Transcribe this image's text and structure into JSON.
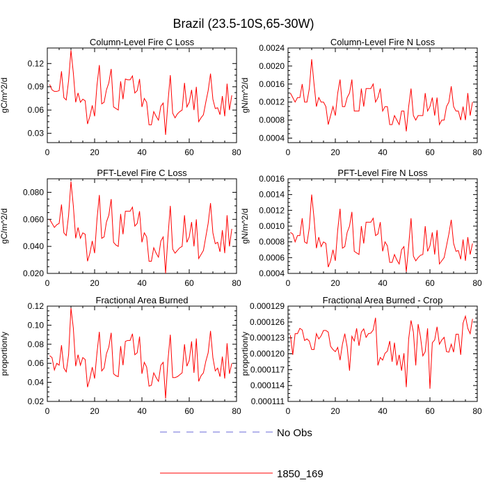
{
  "figure_title": "Brazil (23.5-10S,65-30W)",
  "colors": {
    "model": "#ff0000",
    "obs": "#6a6ad8",
    "axis": "#000000"
  },
  "legend": [
    {
      "label": "No Obs",
      "style": "dashed",
      "color": "#6a6ad8"
    },
    {
      "label": "1850_169",
      "style": "solid",
      "color": "#ff0000"
    }
  ],
  "chart_data": [
    {
      "type": "line",
      "title": "Column-Level Fire C Loss",
      "xlabel": "",
      "ylabel": "gC/m^2/d",
      "xlim": [
        0,
        80
      ],
      "ylim": [
        0.018,
        0.14
      ],
      "xticks": [
        0,
        20,
        40,
        60,
        80
      ],
      "xtick_labels": [
        "0",
        "20",
        "40",
        "60",
        "80"
      ],
      "yticks": [
        0.03,
        0.06,
        0.09,
        0.12
      ],
      "ytick_labels": [
        "0.03",
        "0.06",
        "0.09",
        "0.12"
      ],
      "x_start": 1,
      "series": [
        {
          "name": "1850_169",
          "values": [
            0.093,
            0.086,
            0.084,
            0.084,
            0.085,
            0.11,
            0.076,
            0.073,
            0.098,
            0.137,
            0.108,
            0.07,
            0.082,
            0.07,
            0.074,
            0.072,
            0.042,
            0.052,
            0.066,
            0.052,
            0.092,
            0.118,
            0.068,
            0.07,
            0.086,
            0.095,
            0.113,
            0.064,
            0.062,
            0.06,
            0.097,
            0.074,
            0.1,
            0.099,
            0.099,
            0.104,
            0.082,
            0.085,
            0.1,
            0.064,
            0.075,
            0.07,
            0.041,
            0.041,
            0.058,
            0.052,
            0.047,
            0.065,
            0.069,
            0.028,
            0.07,
            0.105,
            0.056,
            0.05,
            0.055,
            0.058,
            0.06,
            0.095,
            0.064,
            0.07,
            0.086,
            0.06,
            0.09,
            0.045,
            0.05,
            0.054,
            0.07,
            0.085,
            0.107,
            0.074,
            0.062,
            0.063,
            0.054,
            0.078,
            0.052,
            0.094,
            0.06,
            0.079
          ]
        }
      ]
    },
    {
      "type": "line",
      "title": "Column-Level Fire N Loss",
      "xlabel": "",
      "ylabel": "gN/m^2/d",
      "xlim": [
        0,
        80
      ],
      "ylim": [
        0.0003,
        0.0024
      ],
      "xticks": [
        0,
        20,
        40,
        60,
        80
      ],
      "xtick_labels": [
        "0",
        "20",
        "40",
        "60",
        "80"
      ],
      "yticks": [
        0.0004,
        0.0008,
        0.0012,
        0.0016,
        0.002,
        0.0024
      ],
      "ytick_labels": [
        "0.0004",
        "0.0008",
        "0.0012",
        "0.0016",
        "0.0020",
        "0.0024"
      ],
      "x_start": 1,
      "series": [
        {
          "name": "1850_169",
          "values": [
            0.0014,
            0.0013,
            0.0012,
            0.0013,
            0.0013,
            0.0016,
            0.0012,
            0.0012,
            0.0015,
            0.00215,
            0.0016,
            0.0011,
            0.0013,
            0.0012,
            0.0012,
            0.0011,
            0.0007,
            0.0009,
            0.0011,
            0.0009,
            0.0014,
            0.0017,
            0.0011,
            0.0011,
            0.0013,
            0.0014,
            0.0017,
            0.001,
            0.001,
            0.001,
            0.0015,
            0.0011,
            0.0015,
            0.0015,
            0.0015,
            0.0016,
            0.0012,
            0.0013,
            0.0015,
            0.001,
            0.0011,
            0.0011,
            0.0007,
            0.0007,
            0.0009,
            0.0008,
            0.0007,
            0.001,
            0.001,
            0.00055,
            0.0011,
            0.0015,
            0.0009,
            0.0008,
            0.0009,
            0.0009,
            0.0009,
            0.0014,
            0.001,
            0.0011,
            0.0013,
            0.0009,
            0.0013,
            0.0007,
            0.0008,
            0.0008,
            0.0011,
            0.0012,
            0.00155,
            0.0011,
            0.001,
            0.001,
            0.0008,
            0.0011,
            0.0008,
            0.0014,
            0.0009,
            0.0012
          ]
        }
      ]
    },
    {
      "type": "line",
      "title": "PFT-Level Fire C Loss",
      "xlabel": "",
      "ylabel": "gC/m^2/d",
      "xlim": [
        0,
        80
      ],
      "ylim": [
        0.02,
        0.09
      ],
      "xticks": [
        0,
        20,
        40,
        60,
        80
      ],
      "xtick_labels": [
        "0",
        "20",
        "40",
        "60",
        "80"
      ],
      "yticks": [
        0.02,
        0.04,
        0.06,
        0.08
      ],
      "ytick_labels": [
        "0.020",
        "0.040",
        "0.060",
        "0.080"
      ],
      "x_start": 1,
      "series": [
        {
          "name": "1850_169",
          "values": [
            0.06,
            0.057,
            0.054,
            0.056,
            0.057,
            0.071,
            0.05,
            0.048,
            0.063,
            0.088,
            0.07,
            0.046,
            0.054,
            0.046,
            0.05,
            0.049,
            0.029,
            0.035,
            0.044,
            0.035,
            0.06,
            0.078,
            0.046,
            0.047,
            0.058,
            0.063,
            0.075,
            0.043,
            0.041,
            0.04,
            0.064,
            0.049,
            0.066,
            0.066,
            0.066,
            0.069,
            0.055,
            0.057,
            0.066,
            0.043,
            0.05,
            0.047,
            0.029,
            0.029,
            0.039,
            0.035,
            0.032,
            0.044,
            0.047,
            0.02,
            0.047,
            0.07,
            0.038,
            0.035,
            0.037,
            0.039,
            0.04,
            0.063,
            0.043,
            0.047,
            0.058,
            0.04,
            0.06,
            0.031,
            0.034,
            0.037,
            0.047,
            0.057,
            0.072,
            0.05,
            0.042,
            0.043,
            0.036,
            0.052,
            0.035,
            0.063,
            0.04,
            0.053
          ]
        }
      ]
    },
    {
      "type": "line",
      "title": "PFT-Level Fire N Loss",
      "xlabel": "",
      "ylabel": "gN/m^2/d",
      "xlim": [
        0,
        80
      ],
      "ylim": [
        0.0004,
        0.0016
      ],
      "xticks": [
        0,
        20,
        40,
        60,
        80
      ],
      "xtick_labels": [
        "0",
        "20",
        "40",
        "60",
        "80"
      ],
      "yticks": [
        0.0004,
        0.0006,
        0.0008,
        0.001,
        0.0012,
        0.0014,
        0.0016
      ],
      "ytick_labels": [
        "0.0004",
        "0.0006",
        "0.0008",
        "0.0010",
        "0.0012",
        "0.0014",
        "0.0016"
      ],
      "x_start": 1,
      "series": [
        {
          "name": "1850_169",
          "values": [
            0.00092,
            0.0009,
            0.0008,
            0.00088,
            0.00088,
            0.0011,
            0.0008,
            0.00078,
            0.00098,
            0.0014,
            0.0011,
            0.00072,
            0.00086,
            0.00074,
            0.0008,
            0.00078,
            0.00048,
            0.00056,
            0.0007,
            0.00056,
            0.00095,
            0.00122,
            0.00072,
            0.00074,
            0.00092,
            0.001,
            0.00118,
            0.00068,
            0.00066,
            0.00064,
            0.001,
            0.00078,
            0.00105,
            0.00105,
            0.00105,
            0.0011,
            0.00088,
            0.0009,
            0.00105,
            0.00068,
            0.0008,
            0.00075,
            0.00054,
            0.00054,
            0.00064,
            0.00057,
            0.00052,
            0.0007,
            0.00074,
            0.00042,
            0.00075,
            0.0011,
            0.00062,
            0.00056,
            0.0006,
            0.00063,
            0.00064,
            0.001,
            0.00068,
            0.00075,
            0.00092,
            0.00064,
            0.00095,
            0.00052,
            0.00056,
            0.0006,
            0.00075,
            0.0009,
            0.00108,
            0.00078,
            0.00068,
            0.00069,
            0.00058,
            0.00083,
            0.00056,
            0.00086,
            0.00064,
            0.00078
          ]
        }
      ]
    },
    {
      "type": "line",
      "title": "Fractional Area Burned",
      "xlabel": "",
      "ylabel": "proportion/y",
      "xlim": [
        0,
        80
      ],
      "ylim": [
        0.02,
        0.12
      ],
      "xticks": [
        0,
        20,
        40,
        60,
        80
      ],
      "xtick_labels": [
        "0",
        "20",
        "40",
        "60",
        "80"
      ],
      "yticks": [
        0.02,
        0.04,
        0.06,
        0.08,
        0.1,
        0.12
      ],
      "ytick_labels": [
        "0.02",
        "0.04",
        "0.06",
        "0.08",
        "0.10",
        "0.12"
      ],
      "x_start": 1,
      "series": [
        {
          "name": "1850_169",
          "values": [
            0.068,
            0.066,
            0.053,
            0.06,
            0.058,
            0.079,
            0.055,
            0.051,
            0.069,
            0.118,
            0.097,
            0.057,
            0.069,
            0.058,
            0.066,
            0.064,
            0.035,
            0.044,
            0.056,
            0.044,
            0.071,
            0.093,
            0.052,
            0.055,
            0.07,
            0.077,
            0.092,
            0.049,
            0.047,
            0.046,
            0.078,
            0.058,
            0.083,
            0.084,
            0.084,
            0.091,
            0.069,
            0.071,
            0.088,
            0.049,
            0.061,
            0.056,
            0.036,
            0.037,
            0.05,
            0.045,
            0.041,
            0.058,
            0.061,
            0.023,
            0.063,
            0.09,
            0.045,
            0.045,
            0.046,
            0.048,
            0.05,
            0.08,
            0.057,
            0.063,
            0.083,
            0.05,
            0.086,
            0.041,
            0.047,
            0.05,
            0.062,
            0.071,
            0.094,
            0.066,
            0.052,
            0.055,
            0.046,
            0.067,
            0.044,
            0.081,
            0.049,
            0.06
          ]
        }
      ]
    },
    {
      "type": "line",
      "title": "Fractional Area Burned - Crop",
      "xlabel": "",
      "ylabel": "proportion/y",
      "xlim": [
        0,
        80
      ],
      "ylim": [
        0.000111,
        0.000129
      ],
      "xticks": [
        0,
        20,
        40,
        60,
        80
      ],
      "xtick_labels": [
        "0",
        "20",
        "40",
        "60",
        "80"
      ],
      "yticks": [
        0.000111,
        0.000114,
        0.000117,
        0.00012,
        0.000123,
        0.000126,
        0.000129
      ],
      "ytick_labels": [
        "0.000111",
        "0.000114",
        "0.000117",
        "0.000120",
        "0.000123",
        "0.000126",
        "0.000129"
      ],
      "x_start": 1,
      "series": [
        {
          "name": "1850_169",
          "values": [
            0.0001235,
            0.0001198,
            0.0001238,
            0.0001238,
            0.0001248,
            0.0001245,
            0.0001225,
            0.0001228,
            0.0001224,
            0.0001208,
            0.0001208,
            0.0001238,
            0.0001228,
            0.0001234,
            0.0001244,
            0.0001244,
            0.0001241,
            0.0001214,
            0.0001208,
            0.0001204,
            0.0001212,
            0.0001188,
            0.0001218,
            0.0001238,
            0.0001213,
            0.0001168,
            0.0001233,
            0.0001224,
            0.0001248,
            0.0001215,
            0.0001241,
            0.0001247,
            0.0001231,
            0.0001238,
            0.0001239,
            0.0001245,
            0.0001268,
            0.0001178,
            0.0001193,
            0.0001188,
            0.0001201,
            0.0001205,
            0.0001224,
            0.0001185,
            0.0001221,
            0.0001178,
            0.0001198,
            0.0001168,
            0.0001201,
            0.0001137,
            0.0001228,
            0.0001263,
            0.0001241,
            0.0001178,
            0.0001256,
            0.0001232,
            0.0001196,
            0.0001204,
            0.0001248,
            0.0001134,
            0.0001221,
            0.0001226,
            0.0001251,
            0.0001218,
            0.0001226,
            0.0001231,
            0.0001204,
            0.0001203,
            0.0001218,
            0.0001203,
            0.0001237,
            0.0001237,
            0.0001198,
            0.0001258,
            0.0001271,
            0.0001248,
            0.0001238,
            0.0001266
          ]
        }
      ]
    }
  ]
}
